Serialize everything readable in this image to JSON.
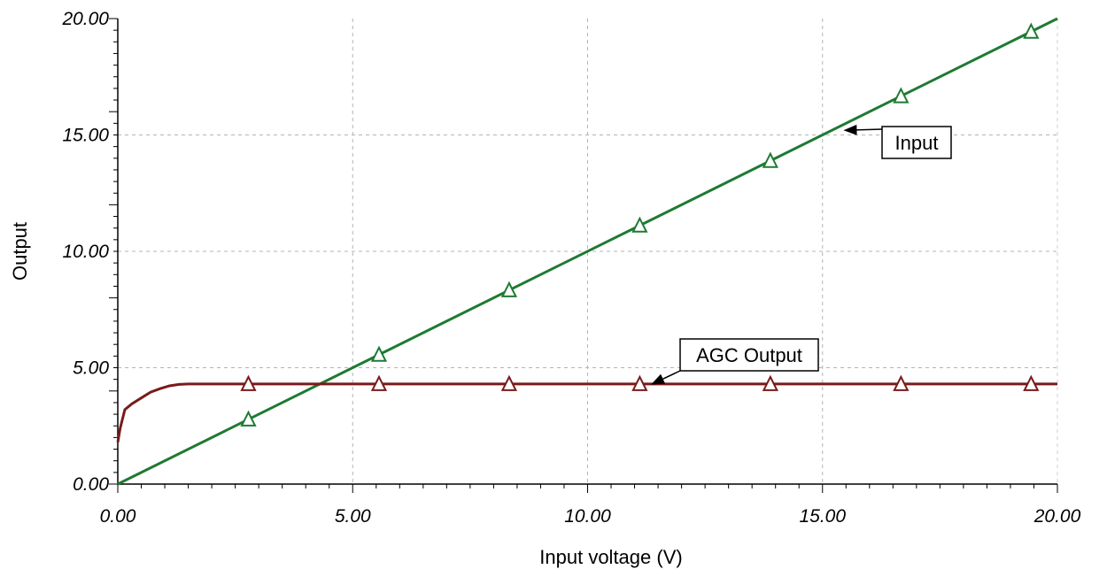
{
  "chart_data": {
    "type": "line",
    "xlabel": "Input voltage (V)",
    "ylabel": "Output",
    "xlim": [
      0,
      20
    ],
    "ylim": [
      0,
      20
    ],
    "x_ticks": [
      "0.00",
      "5.00",
      "10.00",
      "15.00",
      "20.00"
    ],
    "y_ticks": [
      "0.00",
      "5.00",
      "10.00",
      "15.00",
      "20.00"
    ],
    "x_tick_values": [
      0,
      5,
      10,
      15,
      20
    ],
    "y_tick_values": [
      0,
      5,
      10,
      15,
      20
    ],
    "grid": true,
    "series": [
      {
        "name": "Input",
        "color": "#1e7a32",
        "marker": "triangle",
        "x": [
          0,
          20
        ],
        "y": [
          0,
          20
        ],
        "marker_x": [
          2.78,
          5.56,
          8.33,
          11.11,
          13.89,
          16.67,
          19.44
        ],
        "marker_y": [
          2.78,
          5.56,
          8.33,
          11.11,
          13.89,
          16.67,
          19.44
        ]
      },
      {
        "name": "AGC Output",
        "color": "#7a1a1a",
        "marker": "triangle",
        "x": [
          0,
          0.05,
          0.15,
          0.3,
          0.5,
          0.7,
          0.9,
          1.1,
          1.3,
          1.5,
          20
        ],
        "y": [
          1.8,
          2.4,
          3.2,
          3.45,
          3.7,
          3.95,
          4.1,
          4.22,
          4.28,
          4.3,
          4.3
        ],
        "marker_x": [
          2.78,
          5.56,
          8.33,
          11.11,
          13.89,
          16.67,
          19.44
        ],
        "marker_y": [
          4.3,
          4.3,
          4.3,
          4.3,
          4.3,
          4.3,
          4.3
        ]
      }
    ],
    "annotations": [
      {
        "text": "Input",
        "target": [
          15.4,
          15.2
        ],
        "anchor": "right"
      },
      {
        "text": "AGC Output",
        "target": [
          11.3,
          4.3
        ],
        "anchor": "above"
      }
    ]
  }
}
